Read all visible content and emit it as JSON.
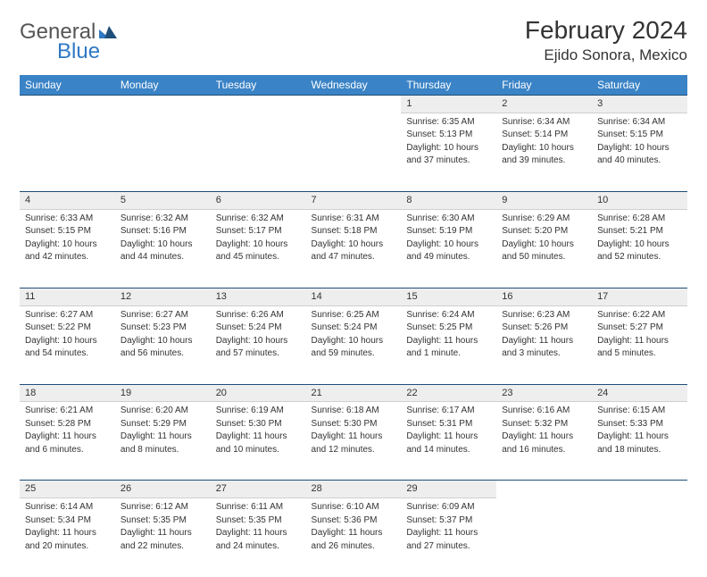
{
  "logo": {
    "word1": "General",
    "word2": "Blue"
  },
  "title": "February 2024",
  "location": "Ejido Sonora, Mexico",
  "colors": {
    "header_bg": "#3a83c6",
    "header_text": "#ffffff",
    "daynum_bg": "#eeeeee",
    "row_border": "#1f4e79",
    "text": "#333333",
    "logo_blue": "#2f78c4"
  },
  "weekdays": [
    "Sunday",
    "Monday",
    "Tuesday",
    "Wednesday",
    "Thursday",
    "Friday",
    "Saturday"
  ],
  "weeks": [
    [
      null,
      null,
      null,
      null,
      {
        "n": "1",
        "sunrise": "Sunrise: 6:35 AM",
        "sunset": "Sunset: 5:13 PM",
        "day1": "Daylight: 10 hours",
        "day2": "and 37 minutes."
      },
      {
        "n": "2",
        "sunrise": "Sunrise: 6:34 AM",
        "sunset": "Sunset: 5:14 PM",
        "day1": "Daylight: 10 hours",
        "day2": "and 39 minutes."
      },
      {
        "n": "3",
        "sunrise": "Sunrise: 6:34 AM",
        "sunset": "Sunset: 5:15 PM",
        "day1": "Daylight: 10 hours",
        "day2": "and 40 minutes."
      }
    ],
    [
      {
        "n": "4",
        "sunrise": "Sunrise: 6:33 AM",
        "sunset": "Sunset: 5:15 PM",
        "day1": "Daylight: 10 hours",
        "day2": "and 42 minutes."
      },
      {
        "n": "5",
        "sunrise": "Sunrise: 6:32 AM",
        "sunset": "Sunset: 5:16 PM",
        "day1": "Daylight: 10 hours",
        "day2": "and 44 minutes."
      },
      {
        "n": "6",
        "sunrise": "Sunrise: 6:32 AM",
        "sunset": "Sunset: 5:17 PM",
        "day1": "Daylight: 10 hours",
        "day2": "and 45 minutes."
      },
      {
        "n": "7",
        "sunrise": "Sunrise: 6:31 AM",
        "sunset": "Sunset: 5:18 PM",
        "day1": "Daylight: 10 hours",
        "day2": "and 47 minutes."
      },
      {
        "n": "8",
        "sunrise": "Sunrise: 6:30 AM",
        "sunset": "Sunset: 5:19 PM",
        "day1": "Daylight: 10 hours",
        "day2": "and 49 minutes."
      },
      {
        "n": "9",
        "sunrise": "Sunrise: 6:29 AM",
        "sunset": "Sunset: 5:20 PM",
        "day1": "Daylight: 10 hours",
        "day2": "and 50 minutes."
      },
      {
        "n": "10",
        "sunrise": "Sunrise: 6:28 AM",
        "sunset": "Sunset: 5:21 PM",
        "day1": "Daylight: 10 hours",
        "day2": "and 52 minutes."
      }
    ],
    [
      {
        "n": "11",
        "sunrise": "Sunrise: 6:27 AM",
        "sunset": "Sunset: 5:22 PM",
        "day1": "Daylight: 10 hours",
        "day2": "and 54 minutes."
      },
      {
        "n": "12",
        "sunrise": "Sunrise: 6:27 AM",
        "sunset": "Sunset: 5:23 PM",
        "day1": "Daylight: 10 hours",
        "day2": "and 56 minutes."
      },
      {
        "n": "13",
        "sunrise": "Sunrise: 6:26 AM",
        "sunset": "Sunset: 5:24 PM",
        "day1": "Daylight: 10 hours",
        "day2": "and 57 minutes."
      },
      {
        "n": "14",
        "sunrise": "Sunrise: 6:25 AM",
        "sunset": "Sunset: 5:24 PM",
        "day1": "Daylight: 10 hours",
        "day2": "and 59 minutes."
      },
      {
        "n": "15",
        "sunrise": "Sunrise: 6:24 AM",
        "sunset": "Sunset: 5:25 PM",
        "day1": "Daylight: 11 hours",
        "day2": "and 1 minute."
      },
      {
        "n": "16",
        "sunrise": "Sunrise: 6:23 AM",
        "sunset": "Sunset: 5:26 PM",
        "day1": "Daylight: 11 hours",
        "day2": "and 3 minutes."
      },
      {
        "n": "17",
        "sunrise": "Sunrise: 6:22 AM",
        "sunset": "Sunset: 5:27 PM",
        "day1": "Daylight: 11 hours",
        "day2": "and 5 minutes."
      }
    ],
    [
      {
        "n": "18",
        "sunrise": "Sunrise: 6:21 AM",
        "sunset": "Sunset: 5:28 PM",
        "day1": "Daylight: 11 hours",
        "day2": "and 6 minutes."
      },
      {
        "n": "19",
        "sunrise": "Sunrise: 6:20 AM",
        "sunset": "Sunset: 5:29 PM",
        "day1": "Daylight: 11 hours",
        "day2": "and 8 minutes."
      },
      {
        "n": "20",
        "sunrise": "Sunrise: 6:19 AM",
        "sunset": "Sunset: 5:30 PM",
        "day1": "Daylight: 11 hours",
        "day2": "and 10 minutes."
      },
      {
        "n": "21",
        "sunrise": "Sunrise: 6:18 AM",
        "sunset": "Sunset: 5:30 PM",
        "day1": "Daylight: 11 hours",
        "day2": "and 12 minutes."
      },
      {
        "n": "22",
        "sunrise": "Sunrise: 6:17 AM",
        "sunset": "Sunset: 5:31 PM",
        "day1": "Daylight: 11 hours",
        "day2": "and 14 minutes."
      },
      {
        "n": "23",
        "sunrise": "Sunrise: 6:16 AM",
        "sunset": "Sunset: 5:32 PM",
        "day1": "Daylight: 11 hours",
        "day2": "and 16 minutes."
      },
      {
        "n": "24",
        "sunrise": "Sunrise: 6:15 AM",
        "sunset": "Sunset: 5:33 PM",
        "day1": "Daylight: 11 hours",
        "day2": "and 18 minutes."
      }
    ],
    [
      {
        "n": "25",
        "sunrise": "Sunrise: 6:14 AM",
        "sunset": "Sunset: 5:34 PM",
        "day1": "Daylight: 11 hours",
        "day2": "and 20 minutes."
      },
      {
        "n": "26",
        "sunrise": "Sunrise: 6:12 AM",
        "sunset": "Sunset: 5:35 PM",
        "day1": "Daylight: 11 hours",
        "day2": "and 22 minutes."
      },
      {
        "n": "27",
        "sunrise": "Sunrise: 6:11 AM",
        "sunset": "Sunset: 5:35 PM",
        "day1": "Daylight: 11 hours",
        "day2": "and 24 minutes."
      },
      {
        "n": "28",
        "sunrise": "Sunrise: 6:10 AM",
        "sunset": "Sunset: 5:36 PM",
        "day1": "Daylight: 11 hours",
        "day2": "and 26 minutes."
      },
      {
        "n": "29",
        "sunrise": "Sunrise: 6:09 AM",
        "sunset": "Sunset: 5:37 PM",
        "day1": "Daylight: 11 hours",
        "day2": "and 27 minutes."
      },
      null,
      null
    ]
  ]
}
